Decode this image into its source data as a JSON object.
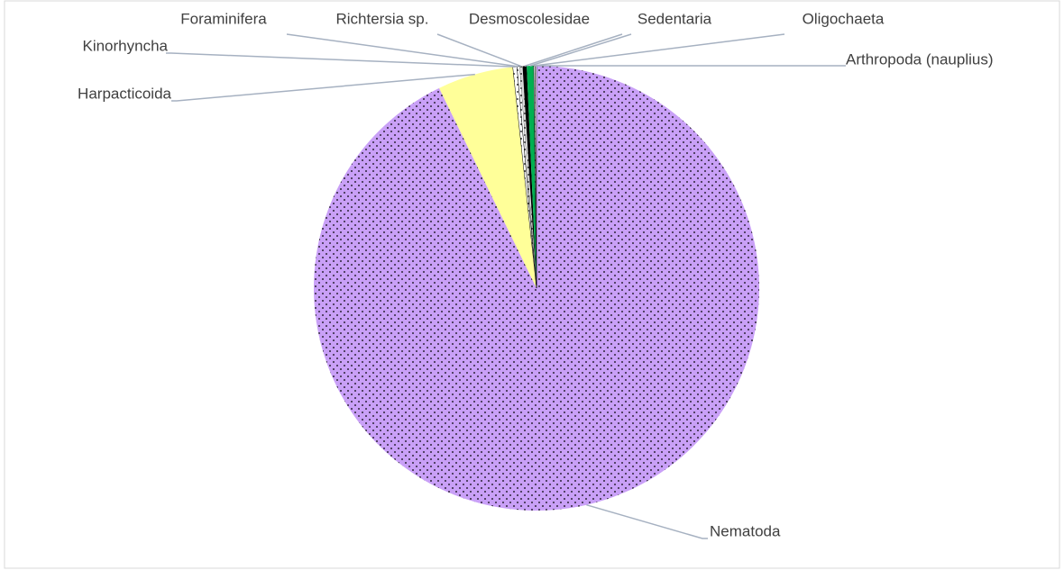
{
  "chart_data": {
    "type": "pie",
    "categories": [
      "Nematoda",
      "Harpacticoida",
      "Kinorhyncha",
      "Foraminifera",
      "Richtersia sp.",
      "Desmoscolesidae",
      "Sedentaria",
      "Oligochaeta",
      "Arthropoda (nauplius)"
    ],
    "values": [
      92.8,
      5.5,
      0.3,
      0.2,
      0.2,
      0.3,
      0.5,
      0.1,
      0.1
    ],
    "colors": [
      "#c9a0f7",
      "#ffff99",
      "#ffffff",
      "#ffffff",
      "#d9d9d9",
      "#000000",
      "#00b050",
      "#ffffff",
      "#ffffff"
    ],
    "pattern": [
      true,
      false,
      true,
      true,
      true,
      false,
      false,
      true,
      false
    ]
  }
}
